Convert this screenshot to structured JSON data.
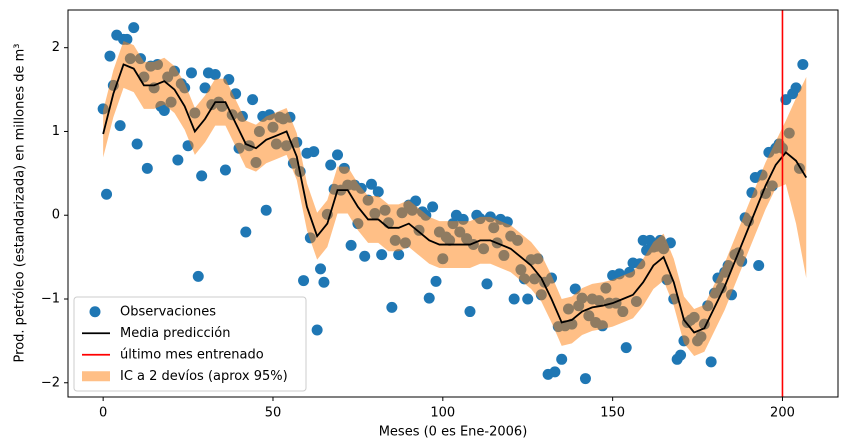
{
  "chart_data": {
    "type": "scatter",
    "xlabel": "Meses (0 es Ene-2006)",
    "ylabel": "Prod. petróleo (estandarizada) en millones de m³",
    "xlim": [
      -10.35,
      216.35
    ],
    "ylim": [
      -2.17,
      2.45
    ],
    "xticks": [
      0,
      50,
      100,
      150,
      200
    ],
    "yticks": [
      {
        "value": -2,
        "label": "−2"
      },
      {
        "value": -1,
        "label": "−1"
      },
      0,
      1,
      2
    ],
    "legend": "lower left",
    "series": [
      {
        "name": "Observaciones",
        "type": "scatter",
        "color": "#1f77b4",
        "x": [
          0,
          1,
          2,
          3,
          4,
          5,
          6,
          7,
          8,
          9,
          10,
          11,
          12,
          13,
          14,
          15,
          16,
          17,
          18,
          19,
          20,
          21,
          22,
          23,
          24,
          25,
          26,
          27,
          28,
          29,
          30,
          31,
          32,
          33,
          34,
          35,
          36,
          37,
          38,
          39,
          40,
          41,
          42,
          43,
          44,
          45,
          46,
          47,
          48,
          49,
          50,
          51,
          52,
          53,
          54,
          55,
          56,
          57,
          58,
          59,
          60,
          61,
          62,
          63,
          64,
          65,
          66,
          67,
          68,
          69,
          70,
          71,
          72,
          73,
          74,
          75,
          76,
          77,
          78,
          79,
          80,
          81,
          82,
          83,
          84,
          85,
          86,
          87,
          88,
          89,
          90,
          91,
          92,
          93,
          94,
          95,
          96,
          97,
          98,
          99,
          100,
          101,
          102,
          103,
          104,
          105,
          106,
          107,
          108,
          109,
          110,
          111,
          112,
          113,
          114,
          115,
          116,
          117,
          118,
          119,
          120,
          121,
          122,
          123,
          124,
          125,
          126,
          127,
          128,
          129,
          130,
          131,
          132,
          133,
          134,
          135,
          136,
          137,
          138,
          139,
          140,
          141,
          142,
          143,
          144,
          145,
          146,
          147,
          148,
          149,
          150,
          151,
          152,
          153,
          154,
          155,
          156,
          157,
          158,
          159,
          160,
          161,
          162,
          163,
          164,
          165,
          166,
          167,
          168,
          169,
          170,
          171,
          172,
          173,
          174,
          175,
          176,
          177,
          178,
          179,
          180,
          181,
          182,
          183,
          184,
          185,
          186,
          187,
          188,
          189,
          190,
          191,
          192,
          193,
          194,
          195,
          196,
          197,
          198,
          199,
          200,
          201,
          202,
          203,
          204,
          205,
          206
        ],
        "values": [
          1.27,
          0.25,
          1.9,
          1.55,
          2.15,
          1.07,
          2.1,
          2.1,
          1.87,
          2.24,
          0.85,
          1.87,
          1.65,
          0.56,
          1.78,
          1.52,
          1.8,
          1.3,
          1.25,
          1.65,
          1.35,
          1.72,
          0.66,
          1.57,
          1.52,
          0.83,
          1.7,
          1.22,
          -0.73,
          0.47,
          1.52,
          1.7,
          1.32,
          1.68,
          1.35,
          1.3,
          0.54,
          1.62,
          1.2,
          1.45,
          0.8,
          1.18,
          -0.2,
          0.83,
          1.38,
          0.63,
          1.0,
          1.18,
          0.06,
          1.2,
          1.05,
          0.85,
          1.17,
          1.15,
          0.83,
          1.17,
          0.62,
          0.87,
          0.52,
          -0.78,
          0.74,
          -0.27,
          0.76,
          -1.37,
          -0.64,
          -0.8,
          0.01,
          0.6,
          0.31,
          0.72,
          0.3,
          0.56,
          0.36,
          -0.36,
          0.36,
          -0.1,
          0.32,
          -0.49,
          0.18,
          0.37,
          0.02,
          0.28,
          -0.47,
          0.06,
          -0.09,
          -1.1,
          -0.3,
          -0.47,
          0.03,
          -0.33,
          0.12,
          0.06,
          0.17,
          -0.18,
          0.04,
          0.0,
          -0.99,
          0.1,
          -0.79,
          -0.2,
          -0.52,
          -0.26,
          -0.3,
          -0.1,
          0.0,
          -0.2,
          -0.05,
          -0.28,
          -1.15,
          -0.35,
          0.0,
          -0.04,
          -0.4,
          -0.82,
          -0.02,
          -0.15,
          -0.33,
          -0.05,
          -0.48,
          -0.08,
          -0.25,
          -1.0,
          -0.3,
          -0.65,
          -0.76,
          -1.0,
          -0.53,
          -0.76,
          -0.52,
          -0.95,
          -0.8,
          -1.9,
          -0.75,
          -1.87,
          -1.33,
          -1.72,
          -1.32,
          -1.12,
          -1.3,
          -0.88,
          -1.08,
          -0.99,
          -1.95,
          -1.2,
          -1.0,
          -1.28,
          -1.02,
          -1.32,
          -0.87,
          -1.05,
          -0.72,
          -1.05,
          -0.7,
          -1.15,
          -1.58,
          -0.68,
          -0.57,
          -1.03,
          -0.58,
          -0.3,
          -0.42,
          -0.3,
          -0.38,
          -0.37,
          -0.3,
          -0.4,
          -0.77,
          -0.33,
          -1.0,
          -1.72,
          -1.67,
          -1.5,
          -1.28,
          -1.25,
          -1.22,
          -1.5,
          -1.45,
          -1.3,
          -1.08,
          -1.75,
          -0.93,
          -0.75,
          -0.87,
          -0.68,
          -0.6,
          -0.95,
          -0.47,
          -0.45,
          -0.55,
          -0.03,
          -0.07,
          0.27,
          0.45,
          -0.6,
          0.48,
          0.26,
          0.75,
          0.35,
          0.8,
          0.85,
          0.8,
          1.38,
          0.98,
          1.45,
          1.52,
          0.56,
          1.8
        ]
      },
      {
        "name": "Media predicción",
        "type": "line",
        "color": "#000000",
        "x": [
          0,
          3,
          6,
          9,
          12,
          15,
          18,
          21,
          24,
          27,
          30,
          33,
          36,
          39,
          42,
          45,
          48,
          51,
          54,
          57,
          60,
          63,
          66,
          69,
          72,
          75,
          78,
          81,
          84,
          87,
          90,
          93,
          96,
          99,
          102,
          105,
          108,
          111,
          114,
          117,
          120,
          123,
          126,
          129,
          132,
          135,
          138,
          141,
          144,
          147,
          150,
          153,
          156,
          159,
          162,
          165,
          168,
          171,
          174,
          177,
          180,
          183,
          186,
          189,
          192,
          195,
          198,
          201,
          204,
          207
        ],
        "values": [
          0.97,
          1.45,
          1.8,
          1.75,
          1.55,
          1.55,
          1.6,
          1.5,
          1.3,
          1.0,
          1.15,
          1.35,
          1.35,
          1.1,
          0.85,
          0.8,
          0.9,
          0.95,
          1.0,
          0.7,
          0.1,
          -0.25,
          -0.1,
          0.3,
          0.3,
          0.1,
          -0.05,
          -0.05,
          -0.15,
          -0.15,
          -0.1,
          -0.2,
          -0.3,
          -0.35,
          -0.35,
          -0.35,
          -0.35,
          -0.3,
          -0.3,
          -0.35,
          -0.4,
          -0.5,
          -0.6,
          -0.75,
          -1.0,
          -1.28,
          -1.25,
          -1.15,
          -1.1,
          -1.08,
          -1.05,
          -1.0,
          -0.95,
          -0.8,
          -0.6,
          -0.5,
          -0.8,
          -1.25,
          -1.4,
          -1.35,
          -1.1,
          -0.85,
          -0.55,
          -0.25,
          0.05,
          0.35,
          0.6,
          0.75,
          0.65,
          0.45
        ]
      },
      {
        "name": "último mes entrenado",
        "type": "vline",
        "color": "#ff0000",
        "x": 200
      },
      {
        "name": "IC a 2 devíos (aprox 95%)",
        "type": "band",
        "color": "#ff7f0e",
        "opacity": 0.5,
        "x": [
          0,
          3,
          6,
          9,
          12,
          15,
          18,
          21,
          24,
          27,
          30,
          33,
          36,
          39,
          42,
          45,
          48,
          51,
          54,
          57,
          60,
          63,
          66,
          69,
          72,
          75,
          78,
          81,
          84,
          87,
          90,
          93,
          96,
          99,
          102,
          105,
          108,
          111,
          114,
          117,
          120,
          123,
          126,
          129,
          132,
          135,
          138,
          141,
          144,
          147,
          150,
          153,
          156,
          159,
          162,
          165,
          168,
          171,
          174,
          177,
          180,
          183,
          186,
          189,
          192,
          195,
          198,
          201,
          204,
          207
        ],
        "upper": [
          1.25,
          1.73,
          2.08,
          2.03,
          1.83,
          1.83,
          1.88,
          1.78,
          1.58,
          1.28,
          1.43,
          1.63,
          1.63,
          1.38,
          1.13,
          1.08,
          1.18,
          1.23,
          1.28,
          0.98,
          0.38,
          0.03,
          0.18,
          0.58,
          0.58,
          0.38,
          0.23,
          0.23,
          0.13,
          0.13,
          0.18,
          0.08,
          -0.02,
          -0.07,
          -0.07,
          -0.07,
          -0.07,
          -0.02,
          -0.02,
          -0.07,
          -0.12,
          -0.22,
          -0.32,
          -0.47,
          -0.72,
          -1.0,
          -0.97,
          -0.87,
          -0.82,
          -0.8,
          -0.77,
          -0.72,
          -0.67,
          -0.52,
          -0.32,
          -0.22,
          -0.52,
          -0.97,
          -1.12,
          -1.07,
          -0.82,
          -0.57,
          -0.27,
          0.03,
          0.33,
          0.63,
          0.88,
          1.13,
          1.4,
          1.65
        ],
        "lower": [
          0.69,
          1.17,
          1.52,
          1.47,
          1.27,
          1.27,
          1.32,
          1.22,
          1.02,
          0.72,
          0.87,
          1.07,
          1.07,
          0.82,
          0.57,
          0.52,
          0.62,
          0.67,
          0.72,
          0.42,
          -0.18,
          -0.53,
          -0.38,
          0.02,
          0.02,
          -0.18,
          -0.33,
          -0.33,
          -0.43,
          -0.43,
          -0.38,
          -0.48,
          -0.58,
          -0.63,
          -0.63,
          -0.63,
          -0.63,
          -0.58,
          -0.58,
          -0.63,
          -0.68,
          -0.78,
          -0.88,
          -1.03,
          -1.28,
          -1.56,
          -1.53,
          -1.43,
          -1.38,
          -1.36,
          -1.33,
          -1.28,
          -1.23,
          -1.08,
          -0.88,
          -0.78,
          -1.08,
          -1.53,
          -1.68,
          -1.63,
          -1.38,
          -1.13,
          -0.83,
          -0.53,
          -0.23,
          0.07,
          0.32,
          0.37,
          -0.1,
          -0.75
        ]
      }
    ]
  }
}
